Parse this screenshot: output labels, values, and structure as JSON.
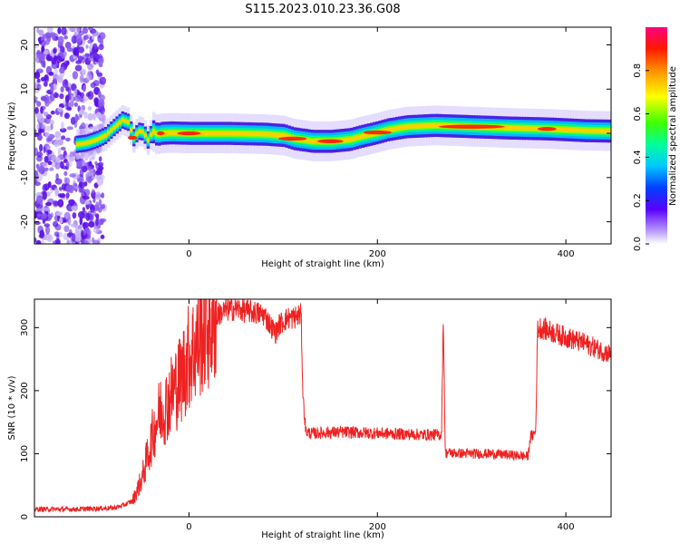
{
  "title": "S115.2023.010.23.36.G08",
  "colors": {
    "snr_line": "#ee2222",
    "axis": "#000000",
    "background": "#ffffff"
  },
  "chart_data": [
    {
      "type": "heatmap",
      "title": "",
      "xlabel": "Height of straight line (km)",
      "ylabel": "Frequency (Hz)",
      "xlim": [
        -164,
        448
      ],
      "ylim": [
        -25,
        24
      ],
      "xticks": [
        0,
        200,
        400
      ],
      "yticks": [
        -20,
        -10,
        0,
        10,
        20
      ],
      "grid": false,
      "colorbar": {
        "label": "Normalized spectral amplitude",
        "range": [
          0,
          1
        ],
        "ticks": [
          0.0,
          0.2,
          0.4,
          0.6,
          0.8
        ]
      },
      "ridge": {
        "x": [
          -120,
          -110,
          -100,
          -90,
          -80,
          -72,
          -66,
          -60,
          -55,
          -50,
          -45,
          -40,
          -35,
          -30,
          -20,
          0,
          40,
          80,
          100,
          110,
          130,
          150,
          160,
          170,
          180,
          190,
          200,
          210,
          230,
          260,
          300,
          340,
          380,
          420,
          448
        ],
        "y": [
          -2.5,
          -2.2,
          -1.5,
          -0.5,
          1.5,
          3.0,
          2.5,
          -1.0,
          0.5,
          0.3,
          -1.5,
          0.5,
          -0.3,
          0.0,
          0.1,
          0.0,
          0.0,
          -0.2,
          -0.5,
          -1.2,
          -1.8,
          -1.8,
          -1.6,
          -1.4,
          -0.8,
          -0.3,
          0.2,
          0.8,
          1.5,
          1.8,
          1.5,
          1.2,
          1.0,
          0.6,
          0.5
        ]
      }
    },
    {
      "type": "line",
      "title": "",
      "xlabel": "Height of straight line (km)",
      "ylabel": "SNR (10 * v/v)",
      "xlim": [
        -164,
        448
      ],
      "ylim": [
        0,
        345
      ],
      "xticks": [
        0,
        200,
        400
      ],
      "yticks": [
        0,
        100,
        200,
        300
      ],
      "grid": false,
      "series": [
        {
          "x": [
            -164,
            -140,
            -120,
            -100,
            -80,
            -70,
            -60,
            -50,
            -45,
            -40,
            -35,
            -30,
            -25,
            -20,
            -15,
            -10,
            -5,
            0,
            5,
            10,
            15,
            20,
            25,
            30,
            40,
            50,
            60,
            70,
            80,
            88,
            92,
            96,
            100,
            105,
            110,
            115,
            119,
            121,
            124,
            130,
            150,
            170,
            190,
            210,
            230,
            250,
            268,
            270,
            272,
            275,
            280,
            300,
            320,
            340,
            360,
            362,
            368,
            370,
            373,
            380,
            400,
            420,
            440,
            448
          ],
          "y": [
            12,
            12,
            12,
            13,
            14,
            18,
            25,
            60,
            90,
            120,
            150,
            170,
            175,
            190,
            205,
            215,
            235,
            255,
            265,
            280,
            295,
            300,
            310,
            320,
            328,
            330,
            326,
            324,
            320,
            300,
            292,
            305,
            310,
            315,
            315,
            318,
            320,
            190,
            135,
            132,
            134,
            134,
            133,
            132,
            131,
            130,
            130,
            318,
            100,
            102,
            101,
            100,
            100,
            98,
            96,
            125,
            135,
            298,
            300,
            296,
            285,
            275,
            262,
            258
          ]
        }
      ]
    }
  ]
}
